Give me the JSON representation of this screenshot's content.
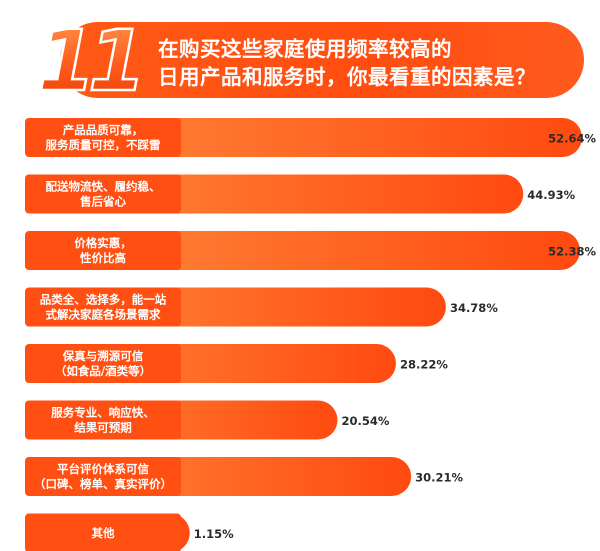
{
  "header": {
    "logo_text": "11",
    "title_line1": "在购买这些家庭使用频率较高的",
    "title_line2": "日用产品和服务时，你最看重的因素是？"
  },
  "colors": {
    "accent": "#ff4f12",
    "bar_light": "#ff8a3d",
    "bar_dark": "#ff4a10",
    "value_text": "#2b2b2b"
  },
  "chart_data": {
    "type": "bar",
    "orientation": "horizontal",
    "categories": [
      [
        "产品品质可靠，",
        "服务质量可控，不踩雷"
      ],
      [
        "配送物流快、履约稳、",
        "售后省心"
      ],
      [
        "价格实惠，",
        "性价比高"
      ],
      [
        "品类全、选择多，能一站",
        "式解决家庭各场景需求"
      ],
      [
        "保真与溯源可信",
        "（如食品/酒类等）"
      ],
      [
        "服务专业、响应快、",
        "结果可预期"
      ],
      [
        "平台评价体系可信",
        "（口碑、榜单、真实评价）"
      ],
      [
        "其他"
      ]
    ],
    "values": [
      52.64,
      44.93,
      52.38,
      34.78,
      28.22,
      20.54,
      30.21,
      1.15
    ],
    "value_labels": [
      "52.64%",
      "44.93%",
      "52.38%",
      "34.78%",
      "28.22%",
      "20.54%",
      "30.21%",
      "1.15%"
    ],
    "xlim": [
      0,
      52.64
    ]
  }
}
